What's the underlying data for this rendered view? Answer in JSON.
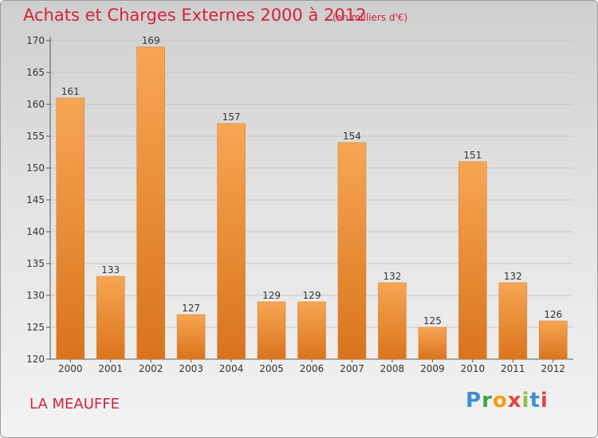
{
  "chart_data": {
    "type": "bar",
    "title": "Achats et Charges Externes 2000 à 2012",
    "unit": "(en milliers d'€)",
    "categories": [
      "2000",
      "2001",
      "2002",
      "2003",
      "2004",
      "2005",
      "2006",
      "2007",
      "2008",
      "2009",
      "2010",
      "2011",
      "2012"
    ],
    "values": [
      161,
      133,
      169,
      127,
      157,
      129,
      129,
      154,
      132,
      125,
      151,
      132,
      126
    ],
    "xlabel": "",
    "ylabel": "",
    "ylim": [
      120,
      170
    ],
    "yticks": [
      120,
      125,
      130,
      135,
      140,
      145,
      150,
      155,
      160,
      165,
      170
    ],
    "grid": true,
    "bar_color": "#e98a2c"
  },
  "footer": {
    "commune": "LA MEAUFFE",
    "logo": {
      "p": "P",
      "r": "r",
      "o": "o",
      "x": "x",
      "i1": "i",
      "t": "t",
      "i2": "i"
    }
  }
}
